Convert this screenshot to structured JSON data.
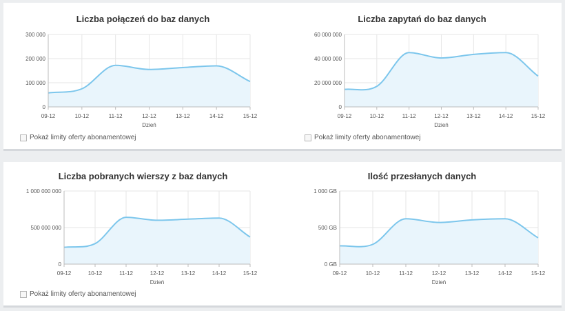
{
  "colors": {
    "line": "#7cc6ec",
    "area": "#e9f5fc",
    "grid": "#e6e6e6",
    "axis": "#bbbbbb",
    "background": "#eceef0"
  },
  "limit_toggle_label": "Pokaż limity oferty abonamentowej",
  "chart_data": [
    {
      "type": "area",
      "title": "Liczba połączeń do baz danych",
      "xlabel": "Dzień",
      "ylabel": "",
      "categories": [
        "09-12",
        "10-12",
        "11-12",
        "12-12",
        "13-12",
        "14-12",
        "15-12"
      ],
      "values": [
        58000,
        75000,
        172000,
        155000,
        163000,
        170000,
        105000
      ],
      "ylim": [
        0,
        300000
      ],
      "yticks": [
        0,
        100000,
        200000,
        300000
      ],
      "ytick_labels": [
        "0",
        "100 000",
        "200 000",
        "300 000"
      ],
      "grid": true
    },
    {
      "type": "area",
      "title": "Liczba zapytań do baz danych",
      "xlabel": "Dzień",
      "ylabel": "",
      "categories": [
        "09-12",
        "10-12",
        "11-12",
        "12-12",
        "13-12",
        "14-12",
        "15-12"
      ],
      "values": [
        14500000,
        17000000,
        45000000,
        40500000,
        43500000,
        45000000,
        25500000
      ],
      "ylim": [
        0,
        60000000
      ],
      "yticks": [
        0,
        20000000,
        40000000,
        60000000
      ],
      "ytick_labels": [
        "0",
        "20 000 000",
        "40 000 000",
        "60 000 000"
      ],
      "grid": true
    },
    {
      "type": "area",
      "title": "Liczba pobranych wierszy z baz danych",
      "xlabel": "Dzień",
      "ylabel": "",
      "categories": [
        "09-12",
        "10-12",
        "11-12",
        "12-12",
        "13-12",
        "14-12",
        "15-12"
      ],
      "values": [
        230000000,
        280000000,
        640000000,
        600000000,
        615000000,
        630000000,
        370000000
      ],
      "ylim": [
        0,
        1000000000
      ],
      "yticks": [
        0,
        500000000,
        1000000000
      ],
      "ytick_labels": [
        "0",
        "500 000 000",
        "1 000 000 000"
      ],
      "grid": true
    },
    {
      "type": "area",
      "title": "Ilość przesłanych danych",
      "xlabel": "Dzień",
      "ylabel": "",
      "categories": [
        "09-12",
        "10-12",
        "11-12",
        "12-12",
        "13-12",
        "14-12",
        "15-12"
      ],
      "values": [
        250,
        270,
        620,
        570,
        605,
        620,
        360
      ],
      "ylim": [
        0,
        1000
      ],
      "yticks": [
        0,
        500,
        1000
      ],
      "ytick_labels": [
        "0 GB",
        "500 GB",
        "1 000 GB"
      ],
      "grid": true
    }
  ]
}
